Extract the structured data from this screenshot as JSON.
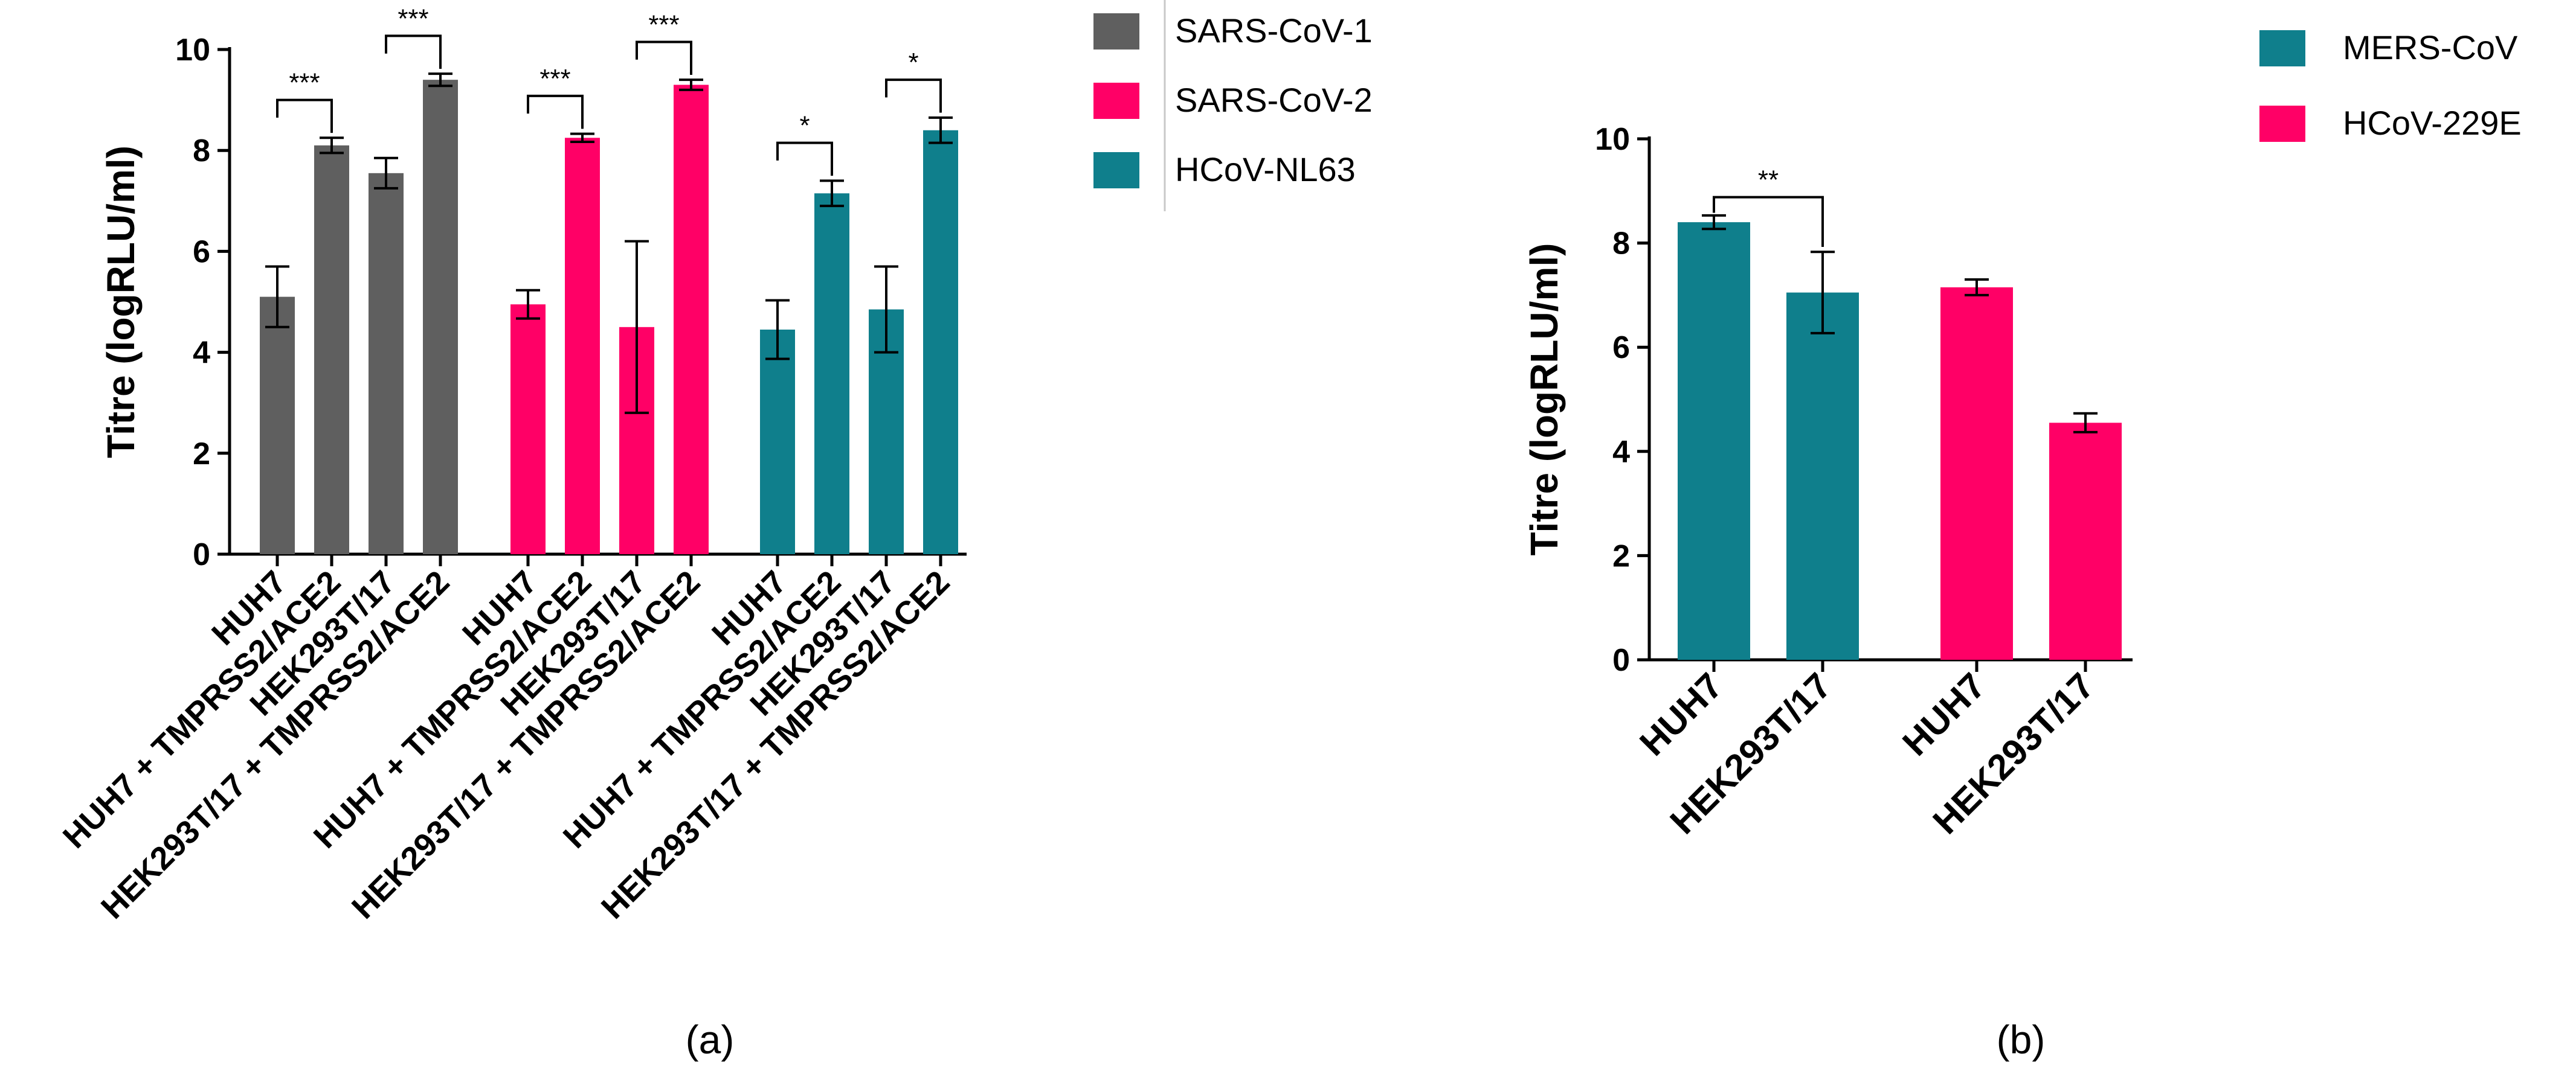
{
  "chart_data": [
    {
      "panel": "a",
      "type": "bar",
      "ylabel": "Titre (logRLU/ml)",
      "ylim": [
        0,
        10
      ],
      "yticks": [
        "0",
        "2",
        "4",
        "6",
        "8",
        "10"
      ],
      "categories": [
        "HUH7",
        "HUH7 + TMPRSS2/ACE2",
        "HEK293T/17",
        "HEK293T/17 + TMPRSS2/ACE2"
      ],
      "legend": [
        {
          "name": "SARS-CoV-1",
          "color": "#5f5f5f"
        },
        {
          "name": "SARS-CoV-2",
          "color": "#ff0066"
        },
        {
          "name": "HCoV-NL63",
          "color": "#0f7f8c"
        }
      ],
      "series": [
        {
          "name": "SARS-CoV-1",
          "color": "#5f5f5f",
          "values": [
            5.1,
            8.1,
            7.55,
            9.4
          ],
          "errors": [
            0.6,
            0.15,
            0.3,
            0.12
          ]
        },
        {
          "name": "SARS-CoV-2",
          "color": "#ff0066",
          "values": [
            4.95,
            8.25,
            4.5,
            9.3
          ],
          "errors": [
            0.28,
            0.08,
            1.7,
            0.1
          ]
        },
        {
          "name": "HCoV-NL63",
          "color": "#0f7f8c",
          "values": [
            4.45,
            7.15,
            4.85,
            8.4
          ],
          "errors": [
            0.58,
            0.25,
            0.85,
            0.25
          ]
        }
      ],
      "significance": [
        {
          "series": 0,
          "from": 0,
          "to": 1,
          "label": "***"
        },
        {
          "series": 0,
          "from": 2,
          "to": 3,
          "label": "***"
        },
        {
          "series": 1,
          "from": 0,
          "to": 1,
          "label": "***"
        },
        {
          "series": 1,
          "from": 2,
          "to": 3,
          "label": "***"
        },
        {
          "series": 2,
          "from": 0,
          "to": 1,
          "label": "*"
        },
        {
          "series": 2,
          "from": 2,
          "to": 3,
          "label": "*"
        }
      ],
      "caption": "(a)"
    },
    {
      "panel": "b",
      "type": "bar",
      "ylabel": "Titre (logRLU/ml)",
      "ylim": [
        0,
        10
      ],
      "yticks": [
        "0",
        "2",
        "4",
        "6",
        "8",
        "10"
      ],
      "categories": [
        "HUH7",
        "HEK293T/17"
      ],
      "legend": [
        {
          "name": "MERS-CoV",
          "color": "#0f7f8c"
        },
        {
          "name": "HCoV-229E",
          "color": "#ff0066"
        }
      ],
      "series": [
        {
          "name": "MERS-CoV",
          "color": "#0f7f8c",
          "values": [
            8.4,
            7.05
          ],
          "errors": [
            0.13,
            0.78
          ]
        },
        {
          "name": "HCoV-229E",
          "color": "#ff0066",
          "values": [
            7.15,
            4.55
          ],
          "errors": [
            0.15,
            0.18
          ]
        }
      ],
      "significance": [
        {
          "series": 0,
          "from": 0,
          "to": 1,
          "label": "**"
        }
      ],
      "caption": "(b)"
    }
  ]
}
